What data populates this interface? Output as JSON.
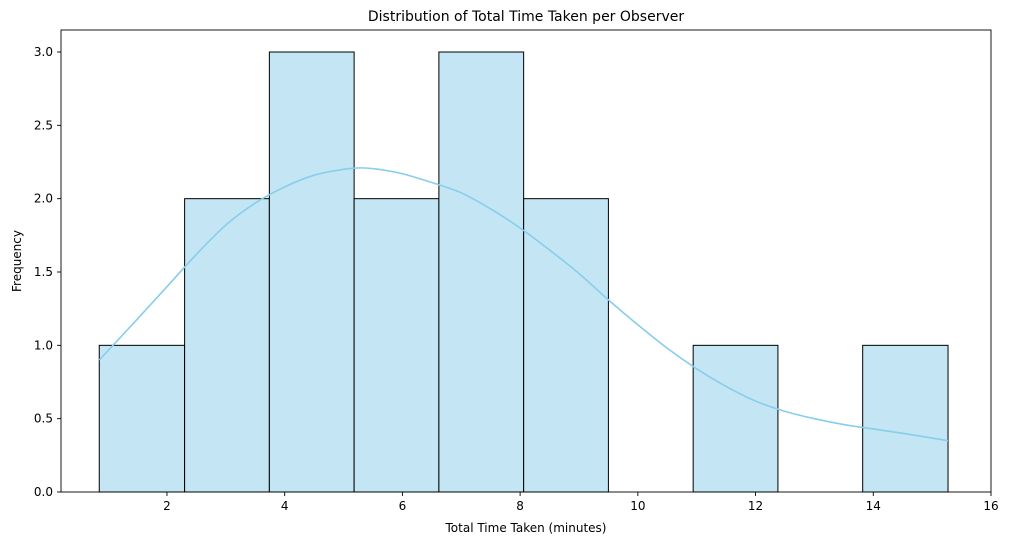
{
  "chart_data": {
    "type": "histogram",
    "title": "Distribution of Total Time Taken per Observer",
    "xlabel": "Total Time Taken (minutes)",
    "ylabel": "Frequency",
    "xlim": [
      0.2,
      16
    ],
    "ylim": [
      0,
      3.15
    ],
    "xticks": [
      2,
      4,
      6,
      8,
      10,
      12,
      14,
      16
    ],
    "yticks": [
      0.0,
      0.5,
      1.0,
      1.5,
      2.0,
      2.5,
      3.0
    ],
    "bins": [
      {
        "x0": 0.85,
        "x1": 2.3,
        "count": 1
      },
      {
        "x0": 2.3,
        "x1": 3.74,
        "count": 2
      },
      {
        "x0": 3.74,
        "x1": 5.18,
        "count": 3
      },
      {
        "x0": 5.18,
        "x1": 6.62,
        "count": 2
      },
      {
        "x0": 6.62,
        "x1": 8.06,
        "count": 3
      },
      {
        "x0": 8.06,
        "x1": 9.5,
        "count": 2
      },
      {
        "x0": 9.5,
        "x1": 10.94,
        "count": 0
      },
      {
        "x0": 10.94,
        "x1": 12.38,
        "count": 1
      },
      {
        "x0": 12.38,
        "x1": 13.82,
        "count": 0
      },
      {
        "x0": 13.82,
        "x1": 15.27,
        "count": 1
      }
    ],
    "kde": {
      "x": [
        0.85,
        1.5,
        2.0,
        2.5,
        3.0,
        3.5,
        4.0,
        4.5,
        5.0,
        5.3,
        5.6,
        6.0,
        6.5,
        7.0,
        7.5,
        8.0,
        8.5,
        9.0,
        9.5,
        10.0,
        10.5,
        11.0,
        11.5,
        12.0,
        12.5,
        13.0,
        13.5,
        14.0,
        14.5,
        15.27
      ],
      "y": [
        0.9,
        1.18,
        1.4,
        1.62,
        1.82,
        1.97,
        2.08,
        2.16,
        2.2,
        2.21,
        2.2,
        2.17,
        2.11,
        2.04,
        1.93,
        1.8,
        1.65,
        1.49,
        1.31,
        1.14,
        0.98,
        0.84,
        0.72,
        0.62,
        0.55,
        0.5,
        0.46,
        0.43,
        0.4,
        0.35
      ]
    },
    "colors": {
      "bar_fill": "#c3e5f4",
      "bar_edge": "#000000",
      "kde_line": "#87ceeb"
    },
    "grid": false
  }
}
